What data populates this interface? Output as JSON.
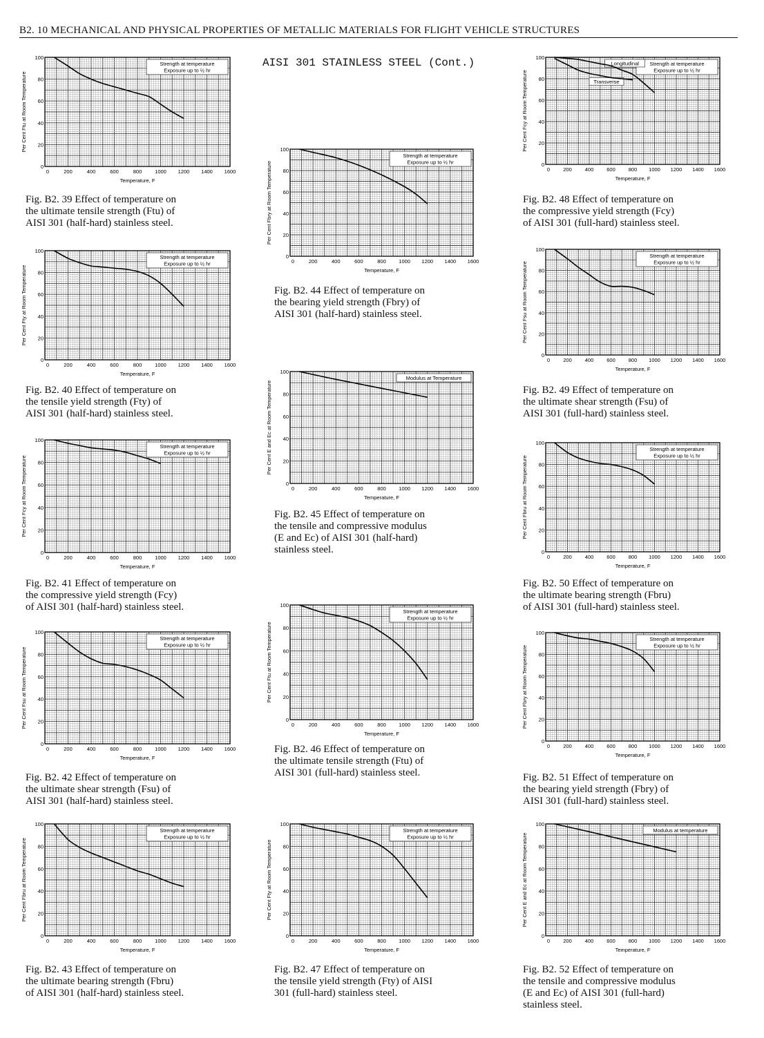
{
  "header": "B2. 10   MECHANICAL AND PHYSICAL PROPERTIES OF METALLIC MATERIALS FOR FLIGHT VEHICLE STRUCTURES",
  "subtitle": "AISI 301 STAINLESS STEEL (Cont.)",
  "chart_data": [
    {
      "id": "b2-39",
      "type": "line",
      "ylabel": "Per Cent  Ftu  at Room Temperature",
      "xlabel": "Temperature, F",
      "legend": [
        "Strength at temperature",
        "Exposure up to ½ hr"
      ],
      "xlim": [
        0,
        1600
      ],
      "ylim": [
        0,
        100
      ],
      "xticks": [
        "0",
        "200",
        "400",
        "600",
        "800",
        "1000",
        "1200",
        "1400",
        "1600"
      ],
      "yticks": [
        "0",
        "20",
        "40",
        "60",
        "80",
        "100"
      ],
      "series": [
        {
          "x": [
            80,
            200,
            300,
            400,
            500,
            600,
            700,
            800,
            900,
            1000,
            1100,
            1200
          ],
          "y": [
            100,
            92,
            85,
            80,
            76,
            73,
            70,
            67,
            64,
            57,
            50,
            44
          ]
        }
      ],
      "caption": [
        "Fig. B2. 39  Effect of temperature on",
        "the ultimate tensile strength (Ftu) of",
        "AISI 301 (half-hard) stainless steel."
      ]
    },
    {
      "id": "b2-40",
      "type": "line",
      "ylabel": "Per Cent  Fty  at Room Temperature",
      "xlabel": "Temperature, F",
      "legend": [
        "Strength at temperature",
        "Exposure up to ½ hr"
      ],
      "xlim": [
        0,
        1600
      ],
      "ylim": [
        0,
        100
      ],
      "xticks": [
        "0",
        "200",
        "400",
        "600",
        "800",
        "1000",
        "1200",
        "1400",
        "1600"
      ],
      "yticks": [
        "0",
        "20",
        "40",
        "60",
        "80",
        "100"
      ],
      "series": [
        {
          "x": [
            80,
            200,
            300,
            400,
            500,
            600,
            700,
            800,
            900,
            1000,
            1100,
            1200
          ],
          "y": [
            100,
            93,
            89,
            86,
            85,
            84,
            83,
            81,
            77,
            70,
            60,
            49
          ]
        }
      ],
      "caption": [
        "Fig. B2. 40  Effect of temperature on",
        "the tensile yield strength (Fty) of",
        "AISI 301 (half-hard) stainless steel."
      ]
    },
    {
      "id": "b2-41",
      "type": "line",
      "ylabel": "Per Cent  Fcy  at Room Temperature",
      "xlabel": "Temperature, F",
      "legend": [
        "Strength at temperature",
        "Exposure up to ½ hr"
      ],
      "xlim": [
        0,
        1600
      ],
      "ylim": [
        0,
        100
      ],
      "xticks": [
        "0",
        "200",
        "400",
        "600",
        "800",
        "1000",
        "1200",
        "1400",
        "1600"
      ],
      "yticks": [
        "0",
        "20",
        "40",
        "60",
        "80",
        "100"
      ],
      "series": [
        {
          "x": [
            80,
            200,
            300,
            400,
            500,
            600,
            700,
            800,
            900,
            1000
          ],
          "y": [
            100,
            97,
            95,
            93,
            92,
            91,
            89,
            86,
            83,
            79
          ]
        }
      ],
      "caption": [
        "Fig. B2. 41  Effect of temperature on",
        "the compressive yield strength (Fcy)",
        "of AISI 301 (half-hard) stainless steel."
      ]
    },
    {
      "id": "b2-42",
      "type": "line",
      "ylabel": "Per Cent  Fsu  at Room Temperature",
      "xlabel": "Temperature, F",
      "legend": [
        "Strength at temperature",
        "Exposure up to ½ hr"
      ],
      "xlim": [
        0,
        1600
      ],
      "ylim": [
        0,
        100
      ],
      "xticks": [
        "0",
        "200",
        "400",
        "600",
        "800",
        "1000",
        "1200",
        "1400",
        "1600"
      ],
      "yticks": [
        "0",
        "20",
        "40",
        "60",
        "80",
        "100"
      ],
      "series": [
        {
          "x": [
            80,
            200,
            300,
            400,
            500,
            600,
            700,
            800,
            900,
            1000,
            1100,
            1200
          ],
          "y": [
            100,
            90,
            82,
            76,
            72,
            71,
            69,
            66,
            62,
            57,
            49,
            41
          ]
        }
      ],
      "caption": [
        "Fig. B2. 42  Effect of temperature on",
        "the ultimate shear strength (Fsu) of",
        "AISI 301 (half-hard) stainless steel."
      ]
    },
    {
      "id": "b2-43",
      "type": "line",
      "ylabel": "Per Cent  Fbru  at Room Temperature",
      "xlabel": "Temperature, F",
      "legend": [
        "Strength at temperature",
        "Exposure up to ½ hr"
      ],
      "xlim": [
        0,
        1600
      ],
      "ylim": [
        0,
        100
      ],
      "xticks": [
        "0",
        "200",
        "400",
        "600",
        "800",
        "1000",
        "1200",
        "1400",
        "1600"
      ],
      "yticks": [
        "0",
        "20",
        "40",
        "60",
        "80",
        "100"
      ],
      "series": [
        {
          "x": [
            80,
            200,
            300,
            400,
            500,
            600,
            700,
            800,
            900,
            1000,
            1100,
            1200
          ],
          "y": [
            100,
            86,
            79,
            74,
            70,
            66,
            62,
            58,
            55,
            51,
            47,
            44
          ]
        }
      ],
      "caption": [
        "Fig. B2. 43  Effect of temperature on",
        "the ultimate bearing strength (Fbru)",
        "of AISI 301 (half-hard) stainless steel."
      ]
    },
    {
      "id": "b2-44",
      "type": "line",
      "ylabel": "Per Cent  Fbry  at Room Temperature",
      "xlabel": "Temperature, F",
      "legend": [
        "Strength at temperature",
        "Exposure up to ½ hr"
      ],
      "xlim": [
        0,
        1600
      ],
      "ylim": [
        0,
        100
      ],
      "xticks": [
        "0",
        "200",
        "400",
        "600",
        "800",
        "1000",
        "1200",
        "1400",
        "1600"
      ],
      "yticks": [
        "0",
        "20",
        "40",
        "60",
        "80",
        "100"
      ],
      "series": [
        {
          "x": [
            80,
            200,
            400,
            600,
            800,
            1000,
            1100,
            1200
          ],
          "y": [
            100,
            97,
            92,
            85,
            76,
            65,
            58,
            49
          ]
        }
      ],
      "caption": [
        "Fig. B2. 44  Effect of temperature on",
        "the bearing yield strength (Fbry) of",
        "AISI 301 (half-hard) stainless steel."
      ]
    },
    {
      "id": "b2-45",
      "type": "line",
      "ylabel": "Per Cent  E and Ec  at Room Temperature",
      "xlabel": "Temperature, F",
      "legend": [
        "Modulus at Temperature"
      ],
      "xlim": [
        0,
        1600
      ],
      "ylim": [
        0,
        100
      ],
      "xticks": [
        "0",
        "200",
        "400",
        "600",
        "800",
        "1000",
        "1200",
        "1400",
        "1600"
      ],
      "yticks": [
        "0",
        "20",
        "40",
        "60",
        "80",
        "100"
      ],
      "series": [
        {
          "x": [
            80,
            400,
            800,
            1200
          ],
          "y": [
            100,
            93,
            85,
            77
          ]
        }
      ],
      "caption": [
        "Fig. B2. 45  Effect of temperature on",
        "the tensile and compressive modulus",
        "(E and Ec) of AISI 301 (half-hard)",
        "stainless steel."
      ]
    },
    {
      "id": "b2-46",
      "type": "line",
      "ylabel": "Per Cent  Ftu  at Room Temperature",
      "xlabel": "Temperature, F",
      "legend": [
        "Strength at temperature",
        "Exposure up to ½ hr"
      ],
      "xlim": [
        0,
        1600
      ],
      "ylim": [
        0,
        100
      ],
      "xticks": [
        "0",
        "200",
        "400",
        "600",
        "800",
        "1000",
        "1200",
        "1400",
        "1600"
      ],
      "yticks": [
        "0",
        "20",
        "40",
        "60",
        "80",
        "100"
      ],
      "series": [
        {
          "x": [
            80,
            200,
            300,
            400,
            500,
            600,
            700,
            800,
            900,
            1000,
            1100,
            1200
          ],
          "y": [
            100,
            96,
            93,
            91,
            89,
            86,
            82,
            76,
            69,
            60,
            49,
            35
          ]
        }
      ],
      "caption": [
        "Fig. B2. 46  Effect of temperature on",
        "the ultimate tensile strength (Ftu) of",
        "AISI 301 (full-hard) stainless steel."
      ]
    },
    {
      "id": "b2-47",
      "type": "line",
      "ylabel": "Per Cent  Fty  at Room Temperature",
      "xlabel": "Temperature, F",
      "legend": [
        "Strength at temperature",
        "Exposure up to ½ hr"
      ],
      "xlim": [
        0,
        1600
      ],
      "ylim": [
        0,
        100
      ],
      "xticks": [
        "0",
        "200",
        "400",
        "600",
        "800",
        "1000",
        "1200",
        "1400",
        "1600"
      ],
      "yticks": [
        "0",
        "20",
        "40",
        "60",
        "80",
        "100"
      ],
      "series": [
        {
          "x": [
            80,
            200,
            300,
            400,
            500,
            600,
            700,
            800,
            900,
            1000,
            1100,
            1200
          ],
          "y": [
            100,
            97,
            95,
            93,
            91,
            88,
            85,
            80,
            72,
            60,
            47,
            34
          ]
        }
      ],
      "caption": [
        "Fig. B2. 47  Effect of temperature on",
        "the tensile yield strength (Fty) of AISI",
        "301 (full-hard) stainless steel."
      ]
    },
    {
      "id": "b2-48",
      "type": "line",
      "ylabel": "Per Cent  Fcy  at Room Temperature",
      "xlabel": "Temperature, F",
      "legend": [
        "Strength at temperature",
        "Exposure up to ½ hr"
      ],
      "annotations": [
        "Longitudinal",
        "Transverse"
      ],
      "xlim": [
        0,
        1600
      ],
      "ylim": [
        0,
        100
      ],
      "xticks": [
        "0",
        "200",
        "400",
        "600",
        "800",
        "1000",
        "1200",
        "1400",
        "1600"
      ],
      "yticks": [
        "0",
        "20",
        "40",
        "60",
        "80",
        "100"
      ],
      "series": [
        {
          "name": "Longitudinal",
          "x": [
            80,
            200,
            300,
            400,
            500,
            600,
            700,
            800,
            900,
            1000
          ],
          "y": [
            100,
            99,
            98,
            96,
            94,
            92,
            88,
            84,
            76,
            67
          ]
        },
        {
          "name": "Transverse",
          "x": [
            80,
            200,
            300,
            400,
            500,
            600,
            700,
            800
          ],
          "y": [
            99,
            93,
            88,
            85,
            83,
            81,
            80,
            79
          ]
        }
      ],
      "caption": [
        "Fig. B2. 48  Effect of temperature on",
        "the compressive yield strength (Fcy)",
        "of AISI 301 (full-hard) stainless steel."
      ]
    },
    {
      "id": "b2-49",
      "type": "line",
      "ylabel": "Per Cent  Fsu  at Room Temperature",
      "xlabel": "Temperature, F",
      "legend": [
        "Strength at temperature",
        "Exposure up to ½ hr"
      ],
      "xlim": [
        0,
        1600
      ],
      "ylim": [
        0,
        100
      ],
      "xticks": [
        "0",
        "200",
        "400",
        "600",
        "800",
        "1000",
        "1200",
        "1400",
        "1600"
      ],
      "yticks": [
        "0",
        "20",
        "40",
        "60",
        "80",
        "100"
      ],
      "series": [
        {
          "x": [
            80,
            200,
            300,
            400,
            500,
            600,
            700,
            800,
            900,
            1000
          ],
          "y": [
            100,
            91,
            83,
            76,
            69,
            65,
            65,
            64,
            61,
            57
          ]
        }
      ],
      "caption": [
        "Fig. B2. 49  Effect of temperature on",
        "the ultimate shear strength (Fsu) of",
        "AISI 301 (full-hard) stainless steel."
      ]
    },
    {
      "id": "b2-50",
      "type": "line",
      "ylabel": "Per Cent  Fbru  at Room Temperature",
      "xlabel": "Temperature, F",
      "legend": [
        "Strength at temperature",
        "Exposure up to ½ hr"
      ],
      "xlim": [
        0,
        1600
      ],
      "ylim": [
        0,
        100
      ],
      "xticks": [
        "0",
        "200",
        "400",
        "600",
        "800",
        "1000",
        "1200",
        "1400",
        "1600"
      ],
      "yticks": [
        "0",
        "20",
        "40",
        "60",
        "80",
        "100"
      ],
      "series": [
        {
          "x": [
            80,
            200,
            300,
            400,
            500,
            600,
            700,
            800,
            900,
            1000
          ],
          "y": [
            100,
            91,
            86,
            83,
            81,
            80,
            78,
            75,
            70,
            62
          ]
        }
      ],
      "caption": [
        "Fig. B2. 50  Effect of temperature on",
        "the ultimate bearing strength (Fbru)",
        "of AISI 301 (full-hard) stainless steel."
      ]
    },
    {
      "id": "b2-51",
      "type": "line",
      "ylabel": "Per Cent  Fbry  at Room Temperature",
      "xlabel": "Temperature, F",
      "legend": [
        "Strength at temperature",
        "Exposure up to ½ hr"
      ],
      "xlim": [
        0,
        1600
      ],
      "ylim": [
        0,
        100
      ],
      "xticks": [
        "0",
        "200",
        "400",
        "600",
        "800",
        "1000",
        "1200",
        "1400",
        "1600"
      ],
      "yticks": [
        "0",
        "20",
        "40",
        "60",
        "80",
        "100"
      ],
      "series": [
        {
          "x": [
            80,
            200,
            300,
            400,
            500,
            600,
            700,
            800,
            900,
            1000
          ],
          "y": [
            100,
            97,
            95,
            94,
            92,
            90,
            87,
            83,
            76,
            64
          ]
        }
      ],
      "caption": [
        "Fig. B2. 51  Effect of temperature on",
        "the bearing yield strength (Fbry) of",
        "AISI 301 (full-hard) stainless steel."
      ]
    },
    {
      "id": "b2-52",
      "type": "line",
      "ylabel": "Per Cent  E and Ec  at Room Temperature",
      "xlabel": "Temperature, F",
      "legend": [
        "Modulus at temperature"
      ],
      "xlim": [
        0,
        1600
      ],
      "ylim": [
        0,
        100
      ],
      "xticks": [
        "0",
        "200",
        "400",
        "600",
        "800",
        "1000",
        "1200",
        "1400",
        "1600"
      ],
      "yticks": [
        "0",
        "20",
        "40",
        "60",
        "80",
        "100"
      ],
      "series": [
        {
          "x": [
            80,
            400,
            800,
            1200
          ],
          "y": [
            100,
            93,
            84,
            75
          ]
        }
      ],
      "caption": [
        "Fig. B2. 52  Effect of temperature on",
        "the tensile and compressive modulus",
        "(E and Ec) of AISI 301 (full-hard)",
        "stainless steel."
      ]
    }
  ]
}
